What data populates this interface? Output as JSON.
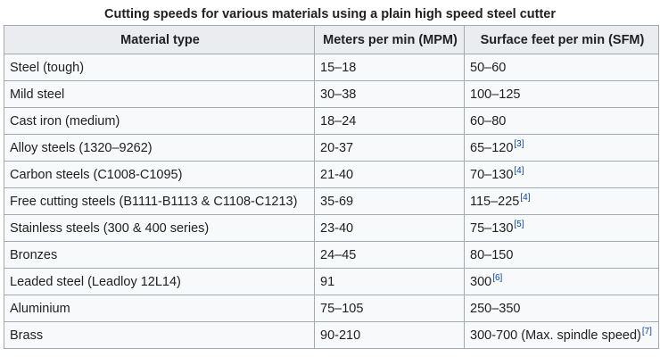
{
  "caption": "Cutting speeds for various materials using a plain high speed steel cutter",
  "headers": [
    "Material type",
    "Meters per min (MPM)",
    "Surface feet per min (SFM)"
  ],
  "rows": [
    {
      "material": "Steel (tough)",
      "mpm": "15–18",
      "sfm": "50–60",
      "ref": ""
    },
    {
      "material": "Mild steel",
      "mpm": "30–38",
      "sfm": "100–125",
      "ref": ""
    },
    {
      "material": "Cast iron (medium)",
      "mpm": "18–24",
      "sfm": "60–80",
      "ref": ""
    },
    {
      "material": "Alloy steels (1320–9262)",
      "mpm": "20-37",
      "sfm": "65–120",
      "ref": "[3]"
    },
    {
      "material": "Carbon steels (C1008-C1095)",
      "mpm": "21-40",
      "sfm": "70–130",
      "ref": "[4]"
    },
    {
      "material": "Free cutting steels (B1111-B1113 & C1108-C1213)",
      "mpm": "35-69",
      "sfm": "115–225",
      "ref": "[4]"
    },
    {
      "material": "Stainless steels (300 & 400 series)",
      "mpm": "23-40",
      "sfm": "75–130",
      "ref": "[5]"
    },
    {
      "material": "Bronzes",
      "mpm": "24–45",
      "sfm": "80–150",
      "ref": ""
    },
    {
      "material": "Leaded steel (Leadloy 12L14)",
      "mpm": "91",
      "sfm": "300",
      "ref": "[6]"
    },
    {
      "material": "Aluminium",
      "mpm": "75–105",
      "sfm": "250–350",
      "ref": ""
    },
    {
      "material": "Brass",
      "mpm": "90-210",
      "sfm": "300-700 (Max. spindle speed)",
      "ref": "[7]"
    }
  ],
  "colors": {
    "header_bg": "#eaecf0",
    "cell_bg": "#f8f9fa",
    "border": "#a2a9b1",
    "link": "#0645ad"
  }
}
